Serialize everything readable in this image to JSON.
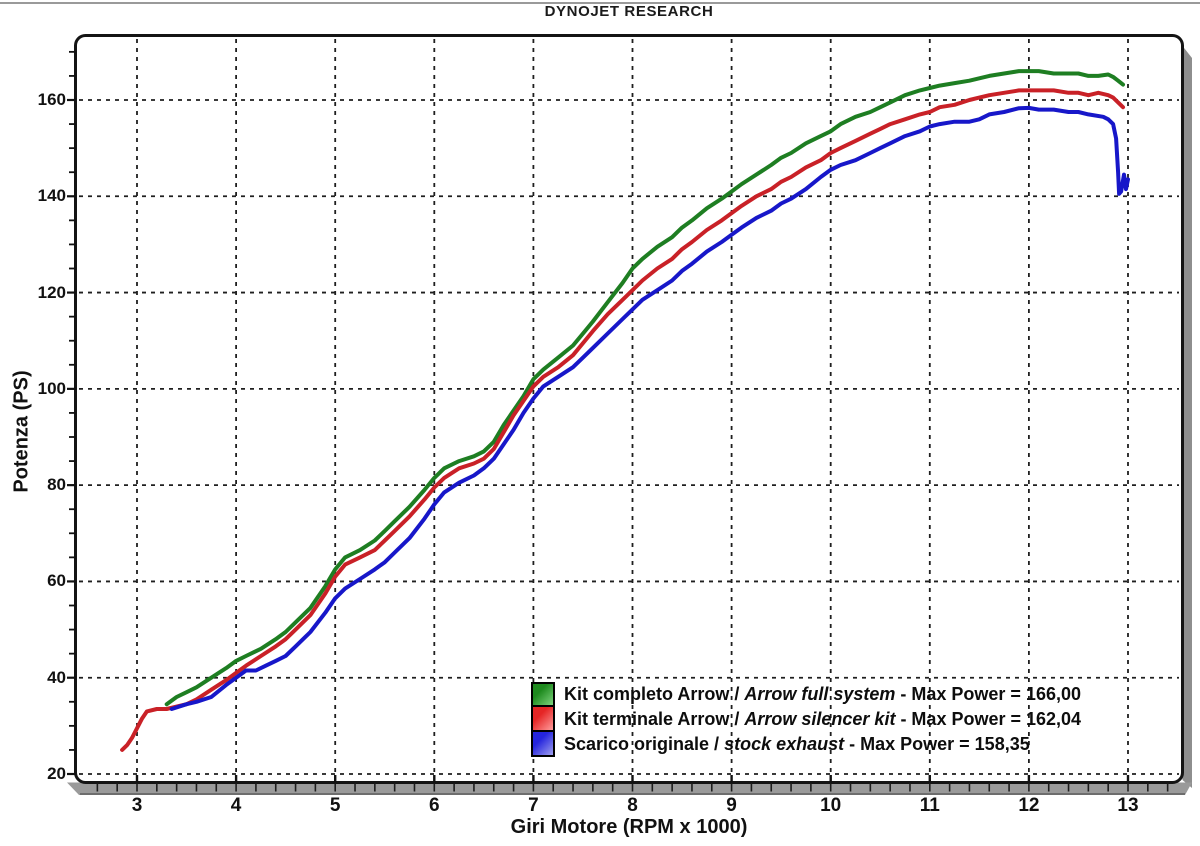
{
  "page": {
    "background": "#ffffff",
    "top_rule_color": "#9a9a9a"
  },
  "chart_data": {
    "type": "line",
    "title": "DYNOJET RESEARCH",
    "xlabel": "Giri Motore (RPM x 1000)",
    "ylabel": "Potenza (PS)",
    "xlim": [
      2.4,
      13.53
    ],
    "ylim": [
      18.3,
      173.2
    ],
    "xticks": [
      3,
      4,
      5,
      6,
      7,
      8,
      9,
      10,
      11,
      12,
      13
    ],
    "yticks": [
      20,
      40,
      60,
      80,
      100,
      120,
      140,
      160
    ],
    "x_minor_step": 0.2,
    "y_minor_step": 5,
    "grid": "dashed",
    "grid_color": "#1f1f1f",
    "frame_color": "#141414",
    "shadow_color": "#8e8e8e",
    "axis_bar_color": "#9a9a9a",
    "legend_position": "bottom-right-inside",
    "series": [
      {
        "id": "arrow-full-system",
        "color": "#1e7e22",
        "swatch_gradient": [
          "#1e8a1e",
          "#7ed47e"
        ],
        "legend_parts": [
          "Kit completo Arrow / ",
          "Arrow full system",
          " - Max Power = 166,00"
        ],
        "max_power": "166,00",
        "points": [
          [
            3.3,
            34.5
          ],
          [
            3.4,
            36
          ],
          [
            3.5,
            37
          ],
          [
            3.6,
            38
          ],
          [
            3.75,
            40
          ],
          [
            3.9,
            42
          ],
          [
            4.0,
            43.5
          ],
          [
            4.1,
            44.5
          ],
          [
            4.25,
            46
          ],
          [
            4.4,
            48
          ],
          [
            4.5,
            49.5
          ],
          [
            4.6,
            51.5
          ],
          [
            4.75,
            54.5
          ],
          [
            4.9,
            59
          ],
          [
            5.0,
            62.5
          ],
          [
            5.1,
            65
          ],
          [
            5.25,
            66.5
          ],
          [
            5.4,
            68.5
          ],
          [
            5.5,
            70.5
          ],
          [
            5.6,
            72.5
          ],
          [
            5.75,
            75.5
          ],
          [
            5.9,
            79
          ],
          [
            6.0,
            81.5
          ],
          [
            6.1,
            83.5
          ],
          [
            6.25,
            85
          ],
          [
            6.4,
            86
          ],
          [
            6.5,
            87
          ],
          [
            6.6,
            89
          ],
          [
            6.7,
            92.5
          ],
          [
            6.8,
            95.5
          ],
          [
            6.9,
            98.5
          ],
          [
            7.0,
            102
          ],
          [
            7.1,
            104
          ],
          [
            7.25,
            106.5
          ],
          [
            7.4,
            109
          ],
          [
            7.5,
            111.5
          ],
          [
            7.6,
            114
          ],
          [
            7.75,
            118
          ],
          [
            7.9,
            122
          ],
          [
            8.0,
            125
          ],
          [
            8.1,
            127
          ],
          [
            8.25,
            129.5
          ],
          [
            8.4,
            131.5
          ],
          [
            8.5,
            133.5
          ],
          [
            8.6,
            135
          ],
          [
            8.75,
            137.5
          ],
          [
            8.9,
            139.5
          ],
          [
            9.0,
            141
          ],
          [
            9.1,
            142.5
          ],
          [
            9.25,
            144.5
          ],
          [
            9.4,
            146.5
          ],
          [
            9.5,
            148
          ],
          [
            9.6,
            149
          ],
          [
            9.75,
            151
          ],
          [
            9.9,
            152.5
          ],
          [
            10.0,
            153.5
          ],
          [
            10.1,
            155
          ],
          [
            10.25,
            156.5
          ],
          [
            10.4,
            157.5
          ],
          [
            10.5,
            158.5
          ],
          [
            10.6,
            159.5
          ],
          [
            10.75,
            161
          ],
          [
            10.9,
            162
          ],
          [
            11.0,
            162.5
          ],
          [
            11.1,
            163
          ],
          [
            11.25,
            163.5
          ],
          [
            11.4,
            164
          ],
          [
            11.5,
            164.5
          ],
          [
            11.6,
            165
          ],
          [
            11.75,
            165.5
          ],
          [
            11.9,
            166
          ],
          [
            12.0,
            166
          ],
          [
            12.1,
            166
          ],
          [
            12.25,
            165.5
          ],
          [
            12.4,
            165.5
          ],
          [
            12.5,
            165.5
          ],
          [
            12.6,
            165
          ],
          [
            12.7,
            165
          ],
          [
            12.8,
            165.3
          ],
          [
            12.85,
            164.8
          ],
          [
            12.9,
            164
          ],
          [
            12.95,
            163.2
          ]
        ]
      },
      {
        "id": "arrow-silencer-kit",
        "color": "#c92127",
        "swatch_gradient": [
          "#e52525",
          "#ff9d9d"
        ],
        "legend_parts": [
          "Kit terminale Arrow / ",
          "Arrow silencer kit",
          " - Max Power = 162,04"
        ],
        "max_power": "162,04",
        "points": [
          [
            2.85,
            25
          ],
          [
            2.9,
            26
          ],
          [
            2.95,
            27.5
          ],
          [
            3.0,
            29.5
          ],
          [
            3.05,
            31.5
          ],
          [
            3.1,
            33
          ],
          [
            3.2,
            33.5
          ],
          [
            3.3,
            33.5
          ],
          [
            3.4,
            34
          ],
          [
            3.5,
            34.5
          ],
          [
            3.6,
            35.5
          ],
          [
            3.75,
            37.5
          ],
          [
            3.9,
            39.5
          ],
          [
            4.0,
            41
          ],
          [
            4.1,
            42.5
          ],
          [
            4.25,
            44.5
          ],
          [
            4.4,
            46.5
          ],
          [
            4.5,
            48
          ],
          [
            4.6,
            50
          ],
          [
            4.75,
            53
          ],
          [
            4.9,
            57.5
          ],
          [
            5.0,
            61
          ],
          [
            5.1,
            63.5
          ],
          [
            5.25,
            65
          ],
          [
            5.4,
            66.5
          ],
          [
            5.5,
            68.5
          ],
          [
            5.6,
            70.5
          ],
          [
            5.75,
            73.5
          ],
          [
            5.9,
            77
          ],
          [
            6.0,
            79.5
          ],
          [
            6.1,
            81.5
          ],
          [
            6.25,
            83.5
          ],
          [
            6.4,
            84.5
          ],
          [
            6.5,
            85.5
          ],
          [
            6.6,
            87.5
          ],
          [
            6.7,
            91
          ],
          [
            6.8,
            94.5
          ],
          [
            6.9,
            97.5
          ],
          [
            7.0,
            100.5
          ],
          [
            7.1,
            102.5
          ],
          [
            7.25,
            104.5
          ],
          [
            7.4,
            107
          ],
          [
            7.5,
            109.5
          ],
          [
            7.6,
            112
          ],
          [
            7.75,
            115.5
          ],
          [
            7.9,
            118.5
          ],
          [
            8.0,
            120.5
          ],
          [
            8.1,
            122.5
          ],
          [
            8.25,
            125
          ],
          [
            8.4,
            127
          ],
          [
            8.5,
            129
          ],
          [
            8.6,
            130.5
          ],
          [
            8.75,
            133
          ],
          [
            8.9,
            135
          ],
          [
            9.0,
            136.5
          ],
          [
            9.1,
            138
          ],
          [
            9.25,
            140
          ],
          [
            9.4,
            141.5
          ],
          [
            9.5,
            143
          ],
          [
            9.6,
            144
          ],
          [
            9.75,
            146
          ],
          [
            9.9,
            147.5
          ],
          [
            10.0,
            149
          ],
          [
            10.1,
            150
          ],
          [
            10.25,
            151.5
          ],
          [
            10.4,
            153
          ],
          [
            10.5,
            154
          ],
          [
            10.6,
            155
          ],
          [
            10.75,
            156
          ],
          [
            10.9,
            157
          ],
          [
            11.0,
            157.5
          ],
          [
            11.1,
            158.5
          ],
          [
            11.25,
            159
          ],
          [
            11.4,
            160
          ],
          [
            11.5,
            160.5
          ],
          [
            11.6,
            161
          ],
          [
            11.75,
            161.5
          ],
          [
            11.9,
            162
          ],
          [
            12.0,
            162
          ],
          [
            12.1,
            162
          ],
          [
            12.25,
            162
          ],
          [
            12.4,
            161.5
          ],
          [
            12.5,
            161.5
          ],
          [
            12.6,
            161
          ],
          [
            12.7,
            161.5
          ],
          [
            12.8,
            161
          ],
          [
            12.85,
            160.5
          ],
          [
            12.9,
            159.5
          ],
          [
            12.95,
            158.5
          ]
        ]
      },
      {
        "id": "stock-exhaust",
        "color": "#1717c9",
        "swatch_gradient": [
          "#2525dd",
          "#9f9fee"
        ],
        "legend_parts": [
          "Scarico originale / ",
          "stock exhaust",
          " - Max Power = 158,35"
        ],
        "max_power": "158,35",
        "points": [
          [
            3.35,
            33.5
          ],
          [
            3.5,
            34.5
          ],
          [
            3.6,
            35
          ],
          [
            3.75,
            36
          ],
          [
            3.9,
            38.5
          ],
          [
            4.0,
            40
          ],
          [
            4.1,
            41.5
          ],
          [
            4.2,
            41.5
          ],
          [
            4.3,
            42.5
          ],
          [
            4.4,
            43.5
          ],
          [
            4.5,
            44.5
          ],
          [
            4.6,
            46.5
          ],
          [
            4.75,
            49.5
          ],
          [
            4.9,
            53.5
          ],
          [
            5.0,
            56.5
          ],
          [
            5.1,
            58.5
          ],
          [
            5.25,
            60.5
          ],
          [
            5.4,
            62.5
          ],
          [
            5.5,
            64
          ],
          [
            5.6,
            66
          ],
          [
            5.75,
            69
          ],
          [
            5.9,
            73
          ],
          [
            6.0,
            76
          ],
          [
            6.1,
            78.5
          ],
          [
            6.25,
            80.5
          ],
          [
            6.4,
            82
          ],
          [
            6.5,
            83.5
          ],
          [
            6.6,
            85.5
          ],
          [
            6.7,
            88.5
          ],
          [
            6.8,
            91.5
          ],
          [
            6.9,
            95
          ],
          [
            7.0,
            98
          ],
          [
            7.1,
            100.5
          ],
          [
            7.25,
            102.5
          ],
          [
            7.4,
            104.5
          ],
          [
            7.5,
            106.5
          ],
          [
            7.6,
            108.5
          ],
          [
            7.75,
            111.5
          ],
          [
            7.9,
            114.5
          ],
          [
            8.0,
            116.5
          ],
          [
            8.1,
            118.5
          ],
          [
            8.25,
            120.5
          ],
          [
            8.4,
            122.5
          ],
          [
            8.5,
            124.5
          ],
          [
            8.6,
            126
          ],
          [
            8.75,
            128.5
          ],
          [
            8.9,
            130.5
          ],
          [
            9.0,
            132
          ],
          [
            9.1,
            133.5
          ],
          [
            9.25,
            135.5
          ],
          [
            9.4,
            137
          ],
          [
            9.5,
            138.5
          ],
          [
            9.6,
            139.5
          ],
          [
            9.75,
            141.5
          ],
          [
            9.9,
            144
          ],
          [
            10.0,
            145.5
          ],
          [
            10.1,
            146.5
          ],
          [
            10.25,
            147.5
          ],
          [
            10.4,
            149
          ],
          [
            10.5,
            150
          ],
          [
            10.6,
            151
          ],
          [
            10.75,
            152.5
          ],
          [
            10.9,
            153.5
          ],
          [
            11.0,
            154.5
          ],
          [
            11.1,
            155
          ],
          [
            11.25,
            155.5
          ],
          [
            11.4,
            155.5
          ],
          [
            11.5,
            156
          ],
          [
            11.6,
            157
          ],
          [
            11.75,
            157.5
          ],
          [
            11.9,
            158.3
          ],
          [
            12.0,
            158.35
          ],
          [
            12.1,
            158
          ],
          [
            12.25,
            158
          ],
          [
            12.4,
            157.5
          ],
          [
            12.5,
            157.5
          ],
          [
            12.6,
            157
          ],
          [
            12.75,
            156.5
          ],
          [
            12.8,
            156
          ],
          [
            12.85,
            155
          ],
          [
            12.88,
            152
          ],
          [
            12.9,
            145
          ],
          [
            12.91,
            140.5
          ],
          [
            12.93,
            141
          ],
          [
            12.96,
            144.5
          ],
          [
            12.98,
            141.5
          ],
          [
            13.0,
            143.5
          ]
        ]
      }
    ]
  }
}
